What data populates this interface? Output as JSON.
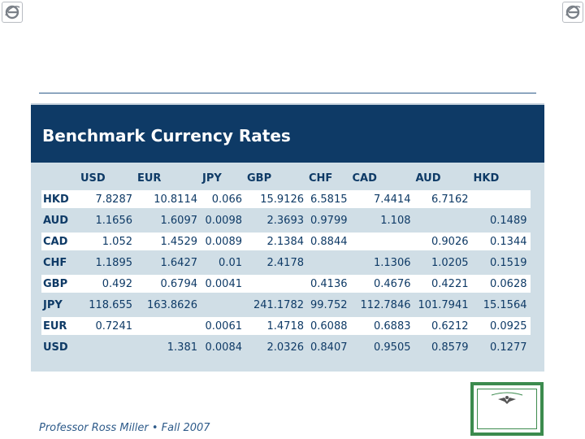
{
  "panel": {
    "title": "Benchmark Currency Rates"
  },
  "table": {
    "columns": [
      "USD",
      "EUR",
      "JPY",
      "GBP",
      "CHF",
      "CAD",
      "AUD",
      "HKD"
    ],
    "rows": [
      {
        "code": "HKD",
        "values": [
          "7.8287",
          "10.8114",
          "0.066",
          "15.9126",
          "6.5815",
          "7.4414",
          "6.7162",
          ""
        ]
      },
      {
        "code": "AUD",
        "values": [
          "1.1656",
          "1.6097",
          "0.0098",
          "2.3693",
          "0.9799",
          "1.108",
          "",
          "0.1489"
        ]
      },
      {
        "code": "CAD",
        "values": [
          "1.052",
          "1.4529",
          "0.0089",
          "2.1384",
          "0.8844",
          "",
          "0.9026",
          "0.1344"
        ]
      },
      {
        "code": "CHF",
        "values": [
          "1.1895",
          "1.6427",
          "0.01",
          "2.4178",
          "",
          "1.1306",
          "1.0205",
          "0.1519"
        ]
      },
      {
        "code": "GBP",
        "values": [
          "0.492",
          "0.6794",
          "0.0041",
          "",
          "0.4136",
          "0.4676",
          "0.4221",
          "0.0628"
        ]
      },
      {
        "code": "JPY",
        "values": [
          "118.655",
          "163.8626",
          "",
          "241.1782",
          "99.752",
          "112.7846",
          "101.7941",
          "15.1564"
        ]
      },
      {
        "code": "EUR",
        "values": [
          "0.7241",
          "",
          "0.0061",
          "1.4718",
          "0.6088",
          "0.6883",
          "0.6212",
          "0.0925"
        ]
      },
      {
        "code": "USD",
        "values": [
          "",
          "1.381",
          "0.0084",
          "2.0326",
          "0.8407",
          "0.9505",
          "0.8579",
          "0.1277"
        ]
      }
    ]
  },
  "footer": {
    "text": "Professor Ross Miller • Fall 2007"
  },
  "icons": {
    "corner_left": "ie-logo-icon",
    "corner_right": "ie-logo-icon",
    "certificate": "stock-certificate-icon"
  },
  "colors": {
    "header_bg": "#0e3a66",
    "panel_bg": "#d0dee6",
    "text": "#0e3a66",
    "certificate_border": "#3c8b4e"
  }
}
